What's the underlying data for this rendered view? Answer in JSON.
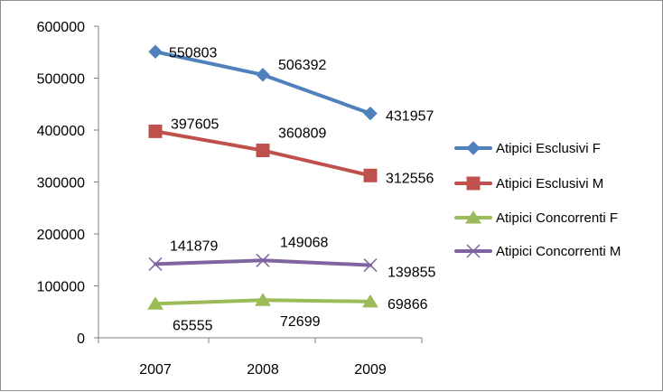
{
  "chart_data": {
    "type": "line",
    "title": "",
    "xlabel": "",
    "ylabel": "",
    "categories": [
      "2007",
      "2008",
      "2009"
    ],
    "ylim": [
      0,
      600000
    ],
    "y_ticks": [
      "0",
      "100000",
      "200000",
      "300000",
      "400000",
      "500000",
      "600000"
    ],
    "grid": false,
    "legend_position": "right",
    "series": [
      {
        "name": "Atipici Esclusivi F",
        "values": [
          550803,
          506392,
          431957
        ],
        "labels": [
          "550803",
          "506392",
          "431957"
        ],
        "color": "#4f81bd",
        "marker": "diamond"
      },
      {
        "name": "Atipici Esclusivi M",
        "values": [
          397605,
          360809,
          312556
        ],
        "labels": [
          "397605",
          "360809",
          "312556"
        ],
        "color": "#c0504d",
        "marker": "square"
      },
      {
        "name": "Atipici Concorrenti F",
        "values": [
          65555,
          72699,
          69866
        ],
        "labels": [
          "65555",
          "72699",
          "69866"
        ],
        "color": "#9bbb59",
        "marker": "triangle"
      },
      {
        "name": "Atipici Concorrenti M",
        "values": [
          141879,
          149068,
          139855
        ],
        "labels": [
          "141879",
          "149068",
          "139855"
        ],
        "color": "#8064a2",
        "marker": "x"
      }
    ]
  }
}
